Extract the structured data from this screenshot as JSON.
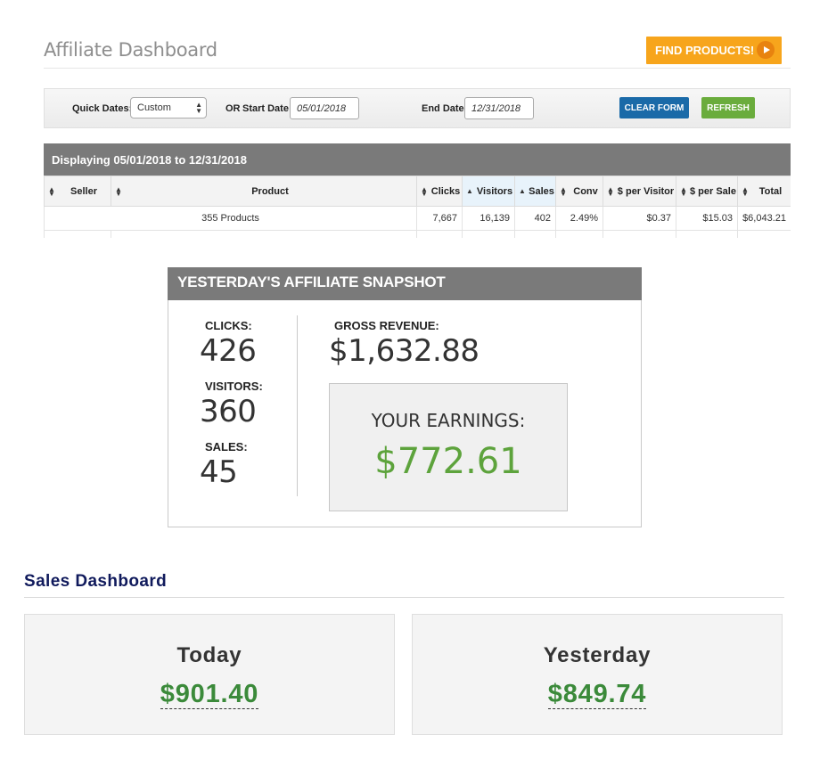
{
  "affiliate": {
    "title": "Affiliate Dashboard",
    "find_products_label": "FIND PRODUCTS!"
  },
  "filters": {
    "quick_dates_label": "Quick Dates:",
    "quick_dates_value": "Custom",
    "or_label": "OR",
    "start_date_label": "Start Date:",
    "start_date_value": "05/01/2018",
    "end_date_label": "End Date:",
    "end_date_value": "12/31/2018",
    "clear_label": "CLEAR FORM",
    "refresh_label": "REFRESH"
  },
  "table": {
    "caption": "Displaying 05/01/2018 to 12/31/2018",
    "columns": {
      "seller": "Seller",
      "product": "Product",
      "clicks": "Clicks",
      "visitors": "Visitors",
      "sales": "Sales",
      "conv": "Conv",
      "per_visitor": "$ per Visitor",
      "per_sale": "$ per Sale",
      "total": "Total"
    },
    "summary": {
      "seller": "",
      "product": "355 Products",
      "clicks": "7,667",
      "visitors": "16,139",
      "sales": "402",
      "conv": "2.49%",
      "per_visitor": "$0.37",
      "per_sale": "$15.03",
      "total": "$6,043.21"
    }
  },
  "snapshot": {
    "title": "YESTERDAY'S AFFILIATE SNAPSHOT",
    "clicks_label": "CLICKS:",
    "clicks_value": "426",
    "visitors_label": "VISITORS:",
    "visitors_value": "360",
    "sales_label": "SALES:",
    "sales_value": "45",
    "gross_label": "GROSS REVENUE:",
    "gross_value": "$1,632.88",
    "earnings_label": "YOUR EARNINGS:",
    "earnings_value": "$772.61"
  },
  "sales_dashboard": {
    "title": "Sales Dashboard",
    "today_label": "Today",
    "today_value": "$901.40",
    "yesterday_label": "Yesterday",
    "yesterday_value": "$849.74"
  },
  "colors": {
    "find_button": "#f7a51c",
    "clear_button": "#1a6aa8",
    "refresh_button": "#6aac3c",
    "earnings_green": "#5da33c",
    "sales_green": "#3b8a3a",
    "sales_title_navy": "#101a5c"
  }
}
